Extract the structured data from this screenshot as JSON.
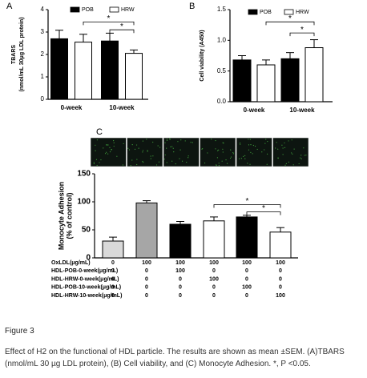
{
  "chart_data": [
    {
      "type": "bar",
      "label": "A",
      "ylabel": [
        "TBARS",
        "(nmol/mL 30μg LDL protein)"
      ],
      "categories": [
        "0-week",
        "10-week"
      ],
      "series": [
        {
          "name": "POB",
          "color": "#000000",
          "values": [
            2.7,
            2.6
          ],
          "errors": [
            0.38,
            0.35
          ]
        },
        {
          "name": "HRW",
          "color": "#ffffff",
          "values": [
            2.55,
            2.05
          ],
          "errors": [
            0.35,
            0.15
          ]
        }
      ],
      "ylim": [
        0,
        4
      ],
      "yticks": [
        0,
        1,
        2,
        3,
        4
      ],
      "annotations": [
        "*",
        "*"
      ]
    },
    {
      "type": "bar",
      "label": "B",
      "ylabel": [
        "Cell viability (A450)"
      ],
      "categories": [
        "0-week",
        "10-week"
      ],
      "series": [
        {
          "name": "POB",
          "color": "#000000",
          "values": [
            0.68,
            0.7
          ],
          "errors": [
            0.07,
            0.1
          ]
        },
        {
          "name": "HRW",
          "color": "#ffffff",
          "values": [
            0.6,
            0.88
          ],
          "errors": [
            0.08,
            0.13
          ]
        }
      ],
      "ylim": [
        0,
        1.5
      ],
      "yticks": [
        {
          "value": 0,
          "label": "0.0"
        },
        0.5,
        {
          "value": 1,
          "label": "1.0"
        },
        1.5
      ],
      "annotations": [
        "*",
        "*"
      ]
    },
    {
      "type": "bar",
      "label": "C",
      "ylabel": [
        "Monocyte Adhesion",
        "(% of control)"
      ],
      "values": [
        30,
        98,
        60,
        66,
        73,
        46
      ],
      "errors": [
        7,
        4,
        5,
        7,
        3,
        8
      ],
      "colors": [
        "#d9d9d9",
        "#a6a6a6",
        "#000000",
        "#ffffff",
        "#000000",
        "#ffffff"
      ],
      "ylim": [
        0,
        150
      ],
      "yticks": [
        0,
        50,
        100,
        150
      ],
      "annotations": [
        "*",
        "*"
      ],
      "table": {
        "rows": [
          {
            "label": "OxLDL(μg/mL)",
            "values": [
              0,
              100,
              100,
              100,
              100,
              100
            ]
          },
          {
            "label": "HDL-POB-0-week(μg/mL)",
            "values": [
              0,
              0,
              100,
              0,
              0,
              0
            ]
          },
          {
            "label": "HDL-HRW-0-week(μg/mL)",
            "values": [
              0,
              0,
              0,
              100,
              0,
              0
            ]
          },
          {
            "label": "HDL-POB-10-week(μg/mL)",
            "values": [
              0,
              0,
              0,
              0,
              100,
              0
            ]
          },
          {
            "label": "HDL-HRW-10-week(μg/mL)",
            "values": [
              0,
              0,
              0,
              0,
              0,
              100
            ]
          }
        ]
      }
    }
  ],
  "figure_label": "Figure 3",
  "caption": "Effect of H2 on the functional of HDL particle. The results are shown as mean ±SEM. (A)TBARS (nmol/mL 30 µg LDL protein), (B) Cell viability, and (C) Monocyte Adhesion. *, P <0.05."
}
